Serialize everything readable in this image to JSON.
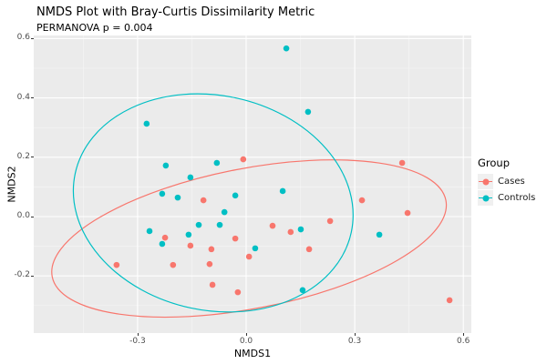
{
  "title": "NMDS Plot with Bray-Curtis Dissimilarity Metric",
  "subtitle": "PERMANOVA p = 0.004",
  "legend": {
    "title": "Group",
    "items": [
      {
        "label": "Cases",
        "color": "#F8766D"
      },
      {
        "label": "Controls",
        "color": "#00BFC4"
      }
    ]
  },
  "chart_data": {
    "type": "scatter",
    "title": "NMDS Plot with Bray-Curtis Dissimilarity Metric",
    "subtitle": "PERMANOVA p = 0.004",
    "xlabel": "NMDS1",
    "ylabel": "NMDS2",
    "xlim": [
      -0.586,
      0.621
    ],
    "ylim": [
      -0.393,
      0.61
    ],
    "grid": true,
    "panel_bg": "#EBEBEB",
    "legend_position": "right",
    "x_ticks": {
      "values": [
        -0.3,
        0.0,
        0.3,
        0.6
      ],
      "labels": [
        "-0.3",
        "0.0",
        "0.3",
        "0.6"
      ]
    },
    "y_ticks": {
      "values": [
        0.6,
        0.4,
        0.2,
        0.0,
        -0.2
      ],
      "labels": [
        "0.6",
        "0.4",
        "0.2",
        "0.0",
        "-0.2"
      ]
    },
    "x_minor": [
      -0.45,
      -0.15,
      0.15,
      0.45
    ],
    "y_minor": [
      0.5,
      0.3,
      0.1,
      -0.1,
      -0.3
    ],
    "series": [
      {
        "name": "Cases",
        "color": "#F8766D",
        "points": [
          [
            -0.008,
            0.193
          ],
          [
            0.431,
            0.181
          ],
          [
            -0.118,
            0.055
          ],
          [
            0.32,
            0.055
          ],
          [
            0.446,
            0.012
          ],
          [
            0.232,
            -0.015
          ],
          [
            0.073,
            -0.031
          ],
          [
            -0.03,
            -0.074
          ],
          [
            -0.224,
            -0.071
          ],
          [
            -0.154,
            -0.098
          ],
          [
            -0.096,
            -0.11
          ],
          [
            0.174,
            -0.11
          ],
          [
            -0.358,
            -0.163
          ],
          [
            -0.202,
            -0.163
          ],
          [
            -0.101,
            -0.16
          ],
          [
            0.008,
            -0.135
          ],
          [
            0.123,
            -0.052
          ],
          [
            -0.093,
            -0.23
          ],
          [
            -0.023,
            -0.255
          ],
          [
            0.562,
            -0.282
          ]
        ],
        "ellipse": {
          "cx": 0.008,
          "cy": -0.074,
          "rx": 0.554,
          "ry": 0.236,
          "rotate_deg": -11
        }
      },
      {
        "name": "Controls",
        "color": "#00BFC4",
        "points": [
          [
            0.111,
            0.567
          ],
          [
            -0.275,
            0.313
          ],
          [
            0.171,
            0.353
          ],
          [
            -0.222,
            0.172
          ],
          [
            -0.154,
            0.132
          ],
          [
            -0.081,
            0.181
          ],
          [
            -0.232,
            0.077
          ],
          [
            -0.189,
            0.064
          ],
          [
            -0.03,
            0.071
          ],
          [
            -0.06,
            0.015
          ],
          [
            -0.131,
            -0.028
          ],
          [
            -0.073,
            -0.028
          ],
          [
            -0.267,
            -0.049
          ],
          [
            -0.159,
            -0.061
          ],
          [
            -0.232,
            -0.092
          ],
          [
            0.101,
            0.086
          ],
          [
            0.151,
            -0.043
          ],
          [
            0.368,
            -0.061
          ],
          [
            0.025,
            -0.107
          ],
          [
            0.156,
            -0.248
          ]
        ],
        "ellipse": {
          "cx": -0.091,
          "cy": 0.046,
          "rx": 0.39,
          "ry": 0.362,
          "rotate_deg": 12
        }
      }
    ]
  }
}
